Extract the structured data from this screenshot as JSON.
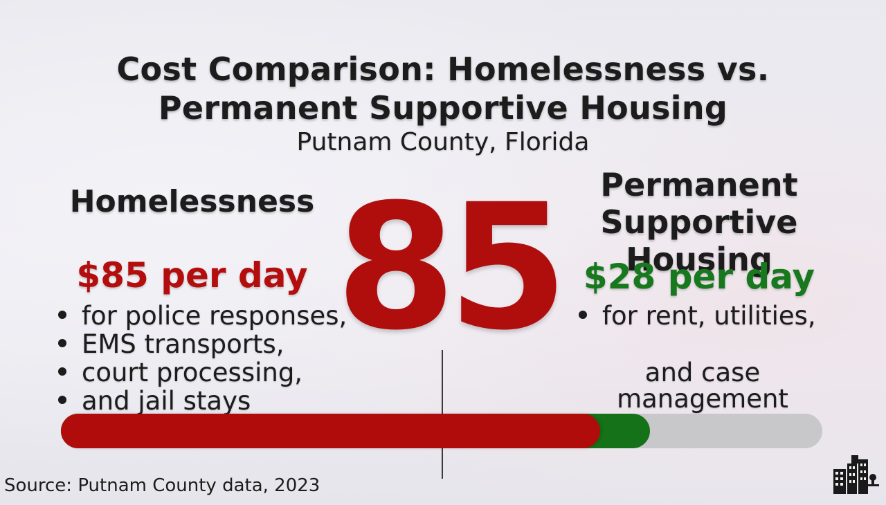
{
  "title": {
    "line1": "Cost Comparison: Homelessness vs.",
    "line2": "Permanent Supportive Housing",
    "location": "Putnam County, Florida"
  },
  "highlight_number": "85",
  "left": {
    "heading": "Homelessness",
    "cost": "$85 per day",
    "items": [
      "for police responses,",
      "EMS transports,",
      "court processing,",
      "and jail stays"
    ]
  },
  "right": {
    "heading_line1": "Permanent",
    "heading_line2": "Supportive Housing",
    "cost": "$28 per day",
    "item": "for rent, utilities,",
    "item_continued": "and case management"
  },
  "comparison_bar": {
    "scale_max": 120,
    "homelessness_per_day": 85,
    "housing_per_day": 28,
    "homelessness_color": "#b10c0c",
    "housing_color": "#157219",
    "track_color": "#c8c8ca"
  },
  "source": "Source: Putnam County data, 2023",
  "logo_icon": "city-buildings-icon"
}
